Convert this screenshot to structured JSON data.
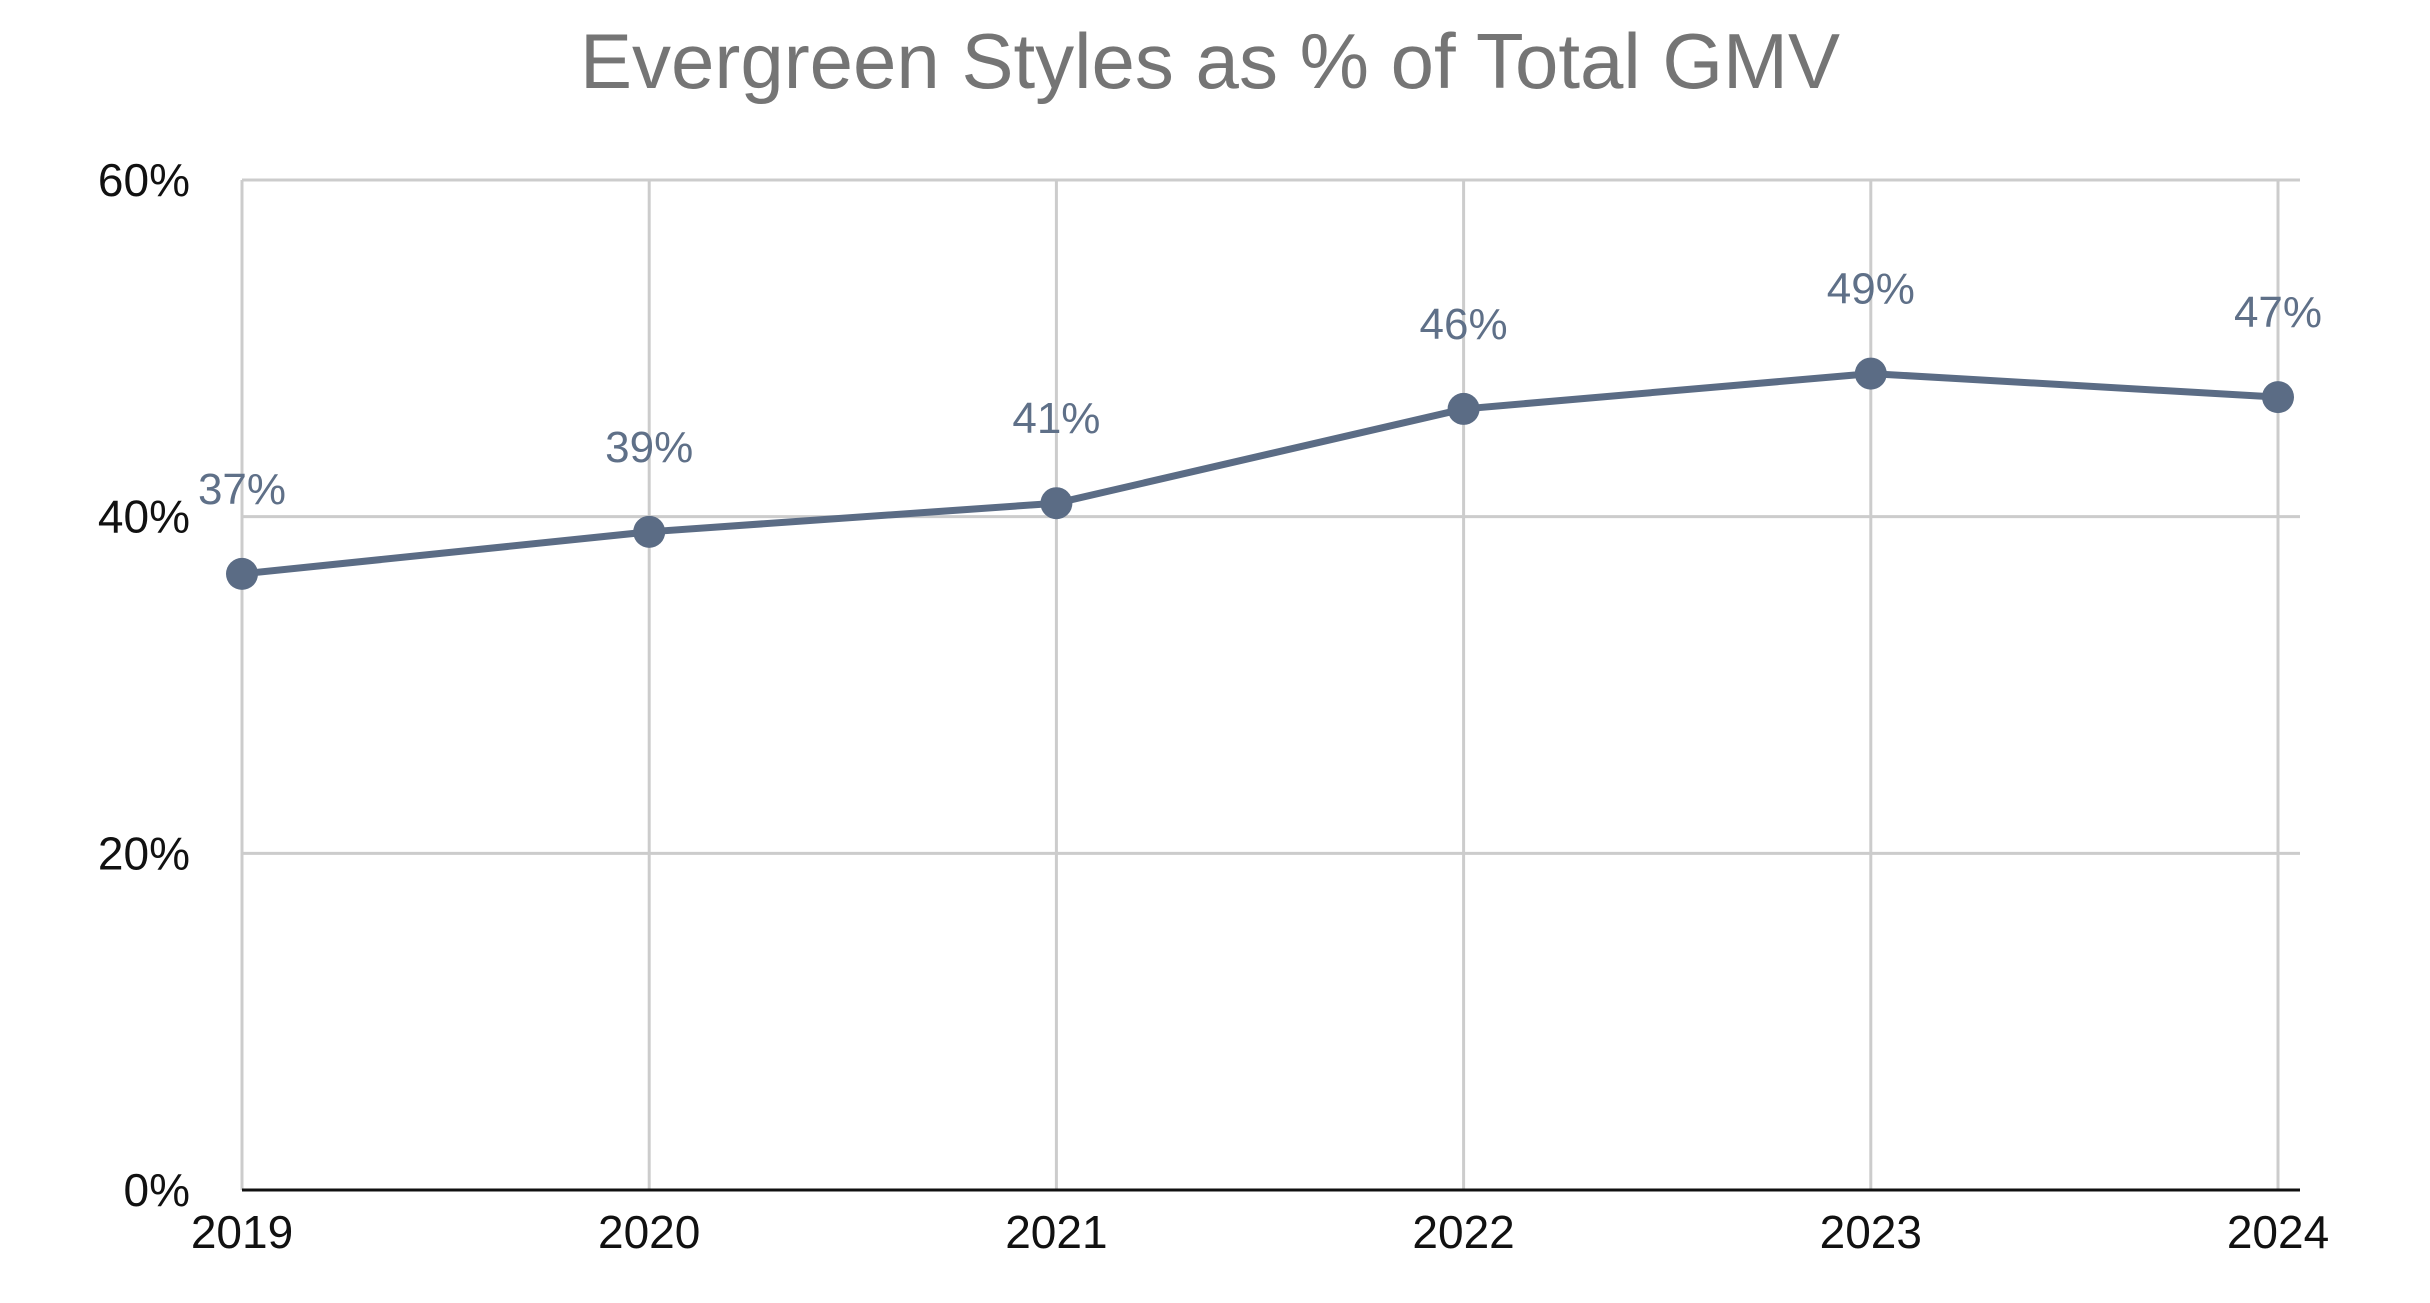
{
  "chart_data": {
    "type": "line",
    "title": "Evergreen Styles as % of Total GMV",
    "xlabel": "",
    "ylabel": "",
    "categories": [
      "2019",
      "2020",
      "2021",
      "2022",
      "2023",
      "2024"
    ],
    "series": [
      {
        "values": [
          36.6,
          39.1,
          40.8,
          46.4,
          48.5,
          47.1
        ],
        "labels": [
          "37%",
          "39%",
          "41%",
          "46%",
          "49%",
          "47%"
        ],
        "color": "#5b6c85"
      }
    ],
    "ylim": [
      0,
      60
    ],
    "yticks": [
      0,
      20,
      40,
      60
    ],
    "ytick_labels": [
      "0%",
      "20%",
      "40%",
      "60%"
    ],
    "grid": true,
    "legend": "none"
  }
}
